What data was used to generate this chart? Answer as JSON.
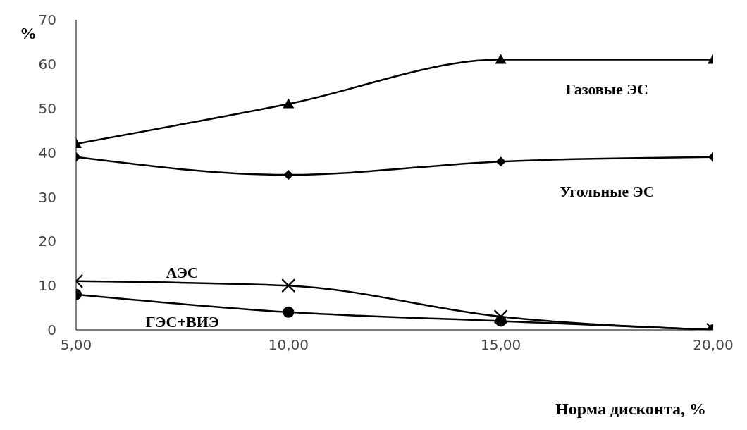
{
  "chart_data": {
    "type": "line",
    "xlabel": "Норма дисконта, %",
    "ylabel": "%",
    "x": [
      5,
      10,
      15,
      20
    ],
    "xlim": [
      5,
      20
    ],
    "xticks": [
      {
        "value": 5,
        "label": "5,00"
      },
      {
        "value": 10,
        "label": "10,00"
      },
      {
        "value": 15,
        "label": "15,00"
      },
      {
        "value": 20,
        "label": "20,00"
      }
    ],
    "ylim": [
      0,
      70
    ],
    "yticks": [
      0,
      10,
      20,
      30,
      40,
      50,
      60,
      70
    ],
    "grid": false,
    "legend": false,
    "line_style": "solid",
    "series": [
      {
        "name": "Газовые ЭС",
        "color": "#000000",
        "marker": "triangle",
        "values": [
          42,
          51,
          61,
          61
        ]
      },
      {
        "name": "Угольные ЭС",
        "color": "#000000",
        "marker": "diamond",
        "values": [
          39,
          35,
          38,
          39
        ]
      },
      {
        "name": "АЭС",
        "color": "#000000",
        "marker": "cross",
        "values": [
          11,
          10,
          3,
          0
        ]
      },
      {
        "name": "ГЭС+ВИЭ",
        "color": "#000000",
        "marker": "circle",
        "values": [
          8,
          4,
          2,
          0
        ]
      }
    ]
  }
}
